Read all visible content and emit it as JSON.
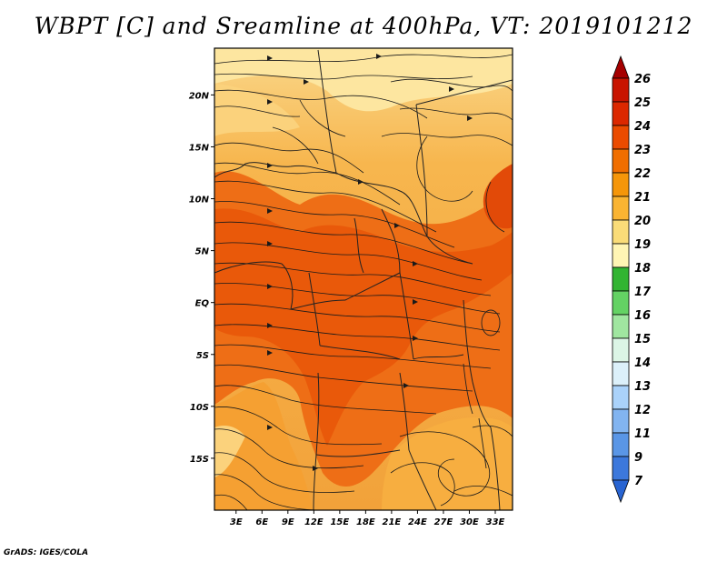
{
  "title": "WBPT [C] and Sreamline at 400hPa, VT: 2019101212",
  "credit": "GrADS: IGES/COLA",
  "map": {
    "lat_labels": [
      "20N",
      "15N",
      "10N",
      "5N",
      "EQ",
      "5S",
      "10S",
      "15S"
    ],
    "lon_labels": [
      "3E",
      "6E",
      "9E",
      "12E",
      "15E",
      "18E",
      "21E",
      "24E",
      "27E",
      "30E",
      "33E"
    ],
    "lat_values": [
      20,
      15,
      10,
      5,
      0,
      -5,
      -10,
      -15
    ],
    "lon_values": [
      3,
      6,
      9,
      12,
      15,
      18,
      21,
      24,
      27,
      30,
      33
    ],
    "lat_range": [
      -20,
      24.5
    ],
    "lon_range": [
      0.5,
      35
    ]
  },
  "colorbar": {
    "labels": [
      "26",
      "25",
      "24",
      "23",
      "22",
      "21",
      "20",
      "19",
      "18",
      "17",
      "16",
      "15",
      "14",
      "13",
      "12",
      "11",
      "9",
      "7"
    ],
    "colors": [
      "#a50000",
      "#c81400",
      "#dc2800",
      "#eb4b00",
      "#f06e00",
      "#f5960a",
      "#fab432",
      "#fadc78",
      "#fff5b4",
      "#32b432",
      "#64d264",
      "#a0e6a0",
      "#dcf5e6",
      "#dcf0fa",
      "#aad2fa",
      "#82b4f0",
      "#5a96e6",
      "#3c78dc",
      "#2864d2"
    ]
  }
}
